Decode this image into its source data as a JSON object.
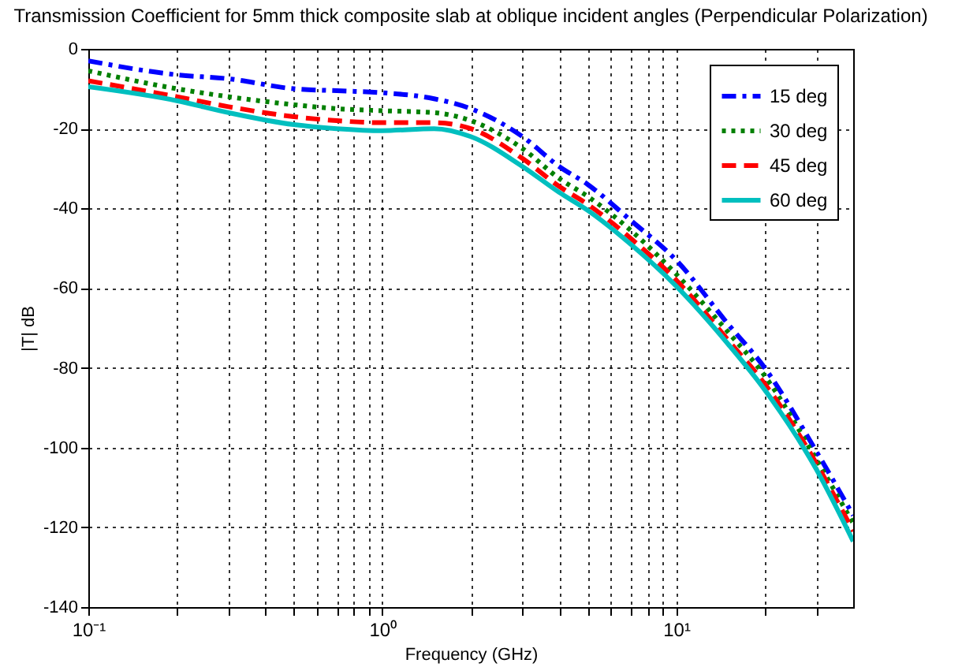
{
  "chart_data": {
    "type": "line",
    "title": "Transmission Coefficient for 5mm thick composite slab at oblique incident angles (Perpendicular Polarization)",
    "xlabel": "Frequency (GHz)",
    "ylabel": "|T| dB",
    "x": [
      0.1,
      0.2,
      0.3,
      0.5,
      0.7,
      1,
      1.5,
      2,
      3,
      4,
      5,
      7,
      10,
      15,
      20,
      30,
      40
    ],
    "series": [
      {
        "name": "15 deg",
        "color": "#0000ff",
        "line_style": "dashdot",
        "values": [
          -3,
          -6.5,
          -7.5,
          -10,
          -10.5,
          -11,
          -12.5,
          -15,
          -22,
          -29.5,
          -34,
          -43,
          -53,
          -69,
          -80,
          -101,
          -117
        ]
      },
      {
        "name": "30 deg",
        "color": "#008000",
        "line_style": "dotted",
        "values": [
          -5.5,
          -10,
          -12,
          -14,
          -15,
          -15.5,
          -16,
          -18,
          -25,
          -32.5,
          -37,
          -45.5,
          -56.5,
          -71,
          -82,
          -103,
          -119
        ]
      },
      {
        "name": "45 deg",
        "color": "#ff0000",
        "line_style": "dashed",
        "values": [
          -8,
          -12,
          -14.5,
          -17,
          -18,
          -18.5,
          -18.5,
          -20,
          -27.5,
          -34.5,
          -39,
          -47.5,
          -58,
          -73,
          -84,
          -104,
          -121
        ]
      },
      {
        "name": "60 deg",
        "color": "#00bfbf",
        "line_style": "solid",
        "values": [
          -9.5,
          -13,
          -16,
          -19,
          -20,
          -20.5,
          -20,
          -22,
          -29.5,
          -36,
          -40.5,
          -49,
          -59.5,
          -74,
          -85.5,
          -105.5,
          -123.5
        ]
      }
    ],
    "log": "x",
    "xlim": [
      0.1,
      40
    ],
    "xticks": [
      {
        "value": 0.1,
        "label": "10⁻¹"
      },
      {
        "value": 0.2,
        "label": null
      },
      {
        "value": 0.3,
        "label": null
      },
      {
        "value": 0.4,
        "label": null
      },
      {
        "value": 0.5,
        "label": null
      },
      {
        "value": 0.6,
        "label": null
      },
      {
        "value": 0.7,
        "label": null
      },
      {
        "value": 0.8,
        "label": null
      },
      {
        "value": 0.9,
        "label": null
      },
      {
        "value": 1,
        "label": "10⁰"
      },
      {
        "value": 2,
        "label": null
      },
      {
        "value": 3,
        "label": null
      },
      {
        "value": 4,
        "label": null
      },
      {
        "value": 5,
        "label": null
      },
      {
        "value": 6,
        "label": null
      },
      {
        "value": 7,
        "label": null
      },
      {
        "value": 8,
        "label": null
      },
      {
        "value": 9,
        "label": null
      },
      {
        "value": 10,
        "label": "10¹"
      },
      {
        "value": 20,
        "label": null
      },
      {
        "value": 30,
        "label": null
      }
    ],
    "ylim": [
      -140,
      0
    ],
    "yticks": [
      -140,
      -120,
      -100,
      -80,
      -60,
      -40,
      -20,
      0
    ],
    "grid": true,
    "legend": "top right"
  }
}
